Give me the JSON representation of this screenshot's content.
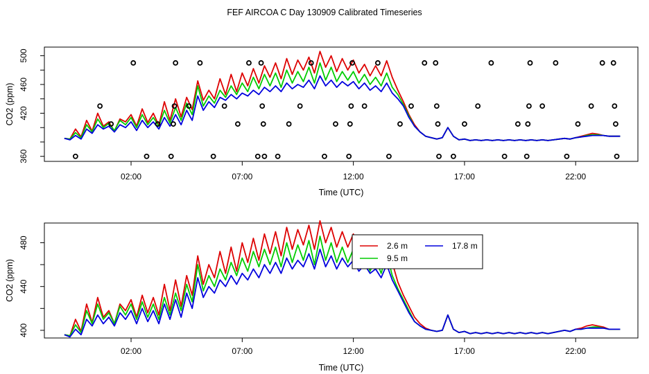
{
  "page_title": "FEF AIRCOA C  Day 130909  Calibrated Timeseries",
  "colors": {
    "red": "#dd0000",
    "green": "#00cc00",
    "blue": "#0000dd",
    "points": "#000000"
  },
  "chart_data": [
    {
      "type": "line",
      "name": "top",
      "title": "FEF AIRCOA C  Day 130909  Calibrated Timeseries",
      "xlabel": "Time (UTC)",
      "ylabel": "CO2 (ppm)",
      "xlim": [
        -1.9,
        24.8
      ],
      "ylim": [
        353,
        512
      ],
      "x_ticks": [
        2,
        7,
        12,
        17,
        22
      ],
      "x_tick_labels": [
        "02:00",
        "07:00",
        "12:00",
        "17:00",
        "22:00"
      ],
      "y_ticks": [
        360,
        420,
        460,
        500
      ],
      "y_tick_labels": [
        "360",
        "420",
        "460",
        "500"
      ],
      "extra_y_ticks": [
        380,
        400,
        440,
        480
      ],
      "x": [
        -1,
        -0.75,
        -0.5,
        -0.25,
        0,
        0.25,
        0.5,
        0.75,
        1,
        1.25,
        1.5,
        1.75,
        2,
        2.25,
        2.5,
        2.75,
        3,
        3.25,
        3.5,
        3.75,
        4,
        4.25,
        4.5,
        4.75,
        5,
        5.25,
        5.5,
        5.75,
        6,
        6.25,
        6.5,
        6.75,
        7,
        7.25,
        7.5,
        7.75,
        8,
        8.25,
        8.5,
        8.75,
        9,
        9.25,
        9.5,
        9.75,
        10,
        10.25,
        10.5,
        10.75,
        11,
        11.25,
        11.5,
        11.75,
        12,
        12.25,
        12.5,
        12.75,
        13,
        13.25,
        13.5,
        13.75,
        14,
        14.25,
        14.5,
        14.75,
        15,
        15.25,
        15.5,
        15.75,
        16,
        16.25,
        16.5,
        16.75,
        17,
        17.25,
        17.5,
        17.75,
        18,
        18.25,
        18.5,
        18.75,
        19,
        19.25,
        19.5,
        19.75,
        20,
        20.25,
        20.5,
        20.75,
        21,
        21.25,
        21.5,
        21.75,
        22,
        22.25,
        22.5,
        22.75,
        23,
        23.25,
        23.5,
        23.75,
        24
      ],
      "series": [
        {
          "name": "2.6 m",
          "color": "#dd0000",
          "values": [
            385,
            384,
            398,
            387,
            410,
            395,
            420,
            402,
            408,
            395,
            412,
            408,
            418,
            402,
            426,
            407,
            420,
            403,
            436,
            410,
            440,
            415,
            442,
            425,
            465,
            438,
            452,
            440,
            468,
            446,
            474,
            450,
            476,
            458,
            482,
            462,
            486,
            470,
            490,
            468,
            496,
            474,
            494,
            480,
            498,
            476,
            506,
            484,
            500,
            478,
            496,
            480,
            494,
            476,
            488,
            472,
            486,
            472,
            493,
            470,
            452,
            436,
            418,
            404,
            394,
            388,
            386,
            384,
            386,
            400,
            388,
            383,
            384,
            382,
            383,
            382,
            383,
            382,
            383,
            382,
            383,
            382,
            383,
            382,
            383,
            382,
            383,
            382,
            383,
            384,
            385,
            384,
            386,
            388,
            390,
            392,
            391,
            389,
            388,
            388,
            388
          ]
        },
        {
          "name": "9.5 m",
          "color": "#00cc00",
          "values": [
            385,
            384,
            393,
            386,
            404,
            394,
            412,
            400,
            406,
            396,
            410,
            404,
            414,
            400,
            418,
            404,
            414,
            402,
            424,
            406,
            428,
            410,
            434,
            418,
            458,
            430,
            444,
            434,
            452,
            442,
            458,
            446,
            462,
            450,
            470,
            454,
            474,
            458,
            476,
            456,
            480,
            462,
            478,
            464,
            484,
            462,
            490,
            466,
            484,
            464,
            478,
            466,
            478,
            462,
            474,
            460,
            470,
            458,
            476,
            456,
            446,
            432,
            416,
            402,
            394,
            388,
            386,
            384,
            386,
            400,
            388,
            383,
            384,
            382,
            383,
            382,
            383,
            382,
            383,
            382,
            383,
            382,
            383,
            382,
            383,
            382,
            383,
            382,
            383,
            384,
            385,
            384,
            386,
            387,
            389,
            390,
            390,
            389,
            388,
            388,
            388
          ]
        },
        {
          "name": "17.8 m",
          "color": "#0000dd",
          "values": [
            385,
            383,
            389,
            384,
            398,
            392,
            404,
            398,
            402,
            394,
            404,
            400,
            408,
            396,
            410,
            400,
            408,
            398,
            414,
            402,
            418,
            404,
            424,
            410,
            444,
            424,
            436,
            428,
            442,
            438,
            446,
            440,
            448,
            444,
            452,
            446,
            456,
            450,
            458,
            450,
            462,
            454,
            460,
            456,
            466,
            454,
            472,
            458,
            466,
            456,
            464,
            458,
            464,
            454,
            462,
            452,
            458,
            450,
            462,
            448,
            440,
            430,
            414,
            402,
            394,
            388,
            386,
            384,
            386,
            400,
            388,
            383,
            384,
            382,
            383,
            382,
            383,
            382,
            383,
            382,
            383,
            382,
            383,
            382,
            383,
            382,
            383,
            382,
            383,
            384,
            385,
            384,
            386,
            387,
            388,
            389,
            389,
            389,
            388,
            388,
            388
          ]
        }
      ],
      "points": [
        {
          "x": -0.5,
          "y": 360
        },
        {
          "x": 0.6,
          "y": 430
        },
        {
          "x": 1.1,
          "y": 405
        },
        {
          "x": 2.1,
          "y": 490
        },
        {
          "x": 2.7,
          "y": 360
        },
        {
          "x": 3.2,
          "y": 405
        },
        {
          "x": 3.8,
          "y": 360
        },
        {
          "x": 3.9,
          "y": 405
        },
        {
          "x": 3.95,
          "y": 430
        },
        {
          "x": 4.0,
          "y": 490
        },
        {
          "x": 4.6,
          "y": 430
        },
        {
          "x": 5.1,
          "y": 490
        },
        {
          "x": 5.7,
          "y": 360
        },
        {
          "x": 6.2,
          "y": 430
        },
        {
          "x": 6.8,
          "y": 405
        },
        {
          "x": 7.3,
          "y": 490
        },
        {
          "x": 7.7,
          "y": 360
        },
        {
          "x": 7.85,
          "y": 490
        },
        {
          "x": 7.9,
          "y": 430
        },
        {
          "x": 7.95,
          "y": 405
        },
        {
          "x": 8.0,
          "y": 360
        },
        {
          "x": 8.6,
          "y": 360
        },
        {
          "x": 9.1,
          "y": 405
        },
        {
          "x": 9.6,
          "y": 430
        },
        {
          "x": 10.1,
          "y": 490
        },
        {
          "x": 10.7,
          "y": 360
        },
        {
          "x": 11.2,
          "y": 405
        },
        {
          "x": 11.8,
          "y": 360
        },
        {
          "x": 11.85,
          "y": 405
        },
        {
          "x": 11.9,
          "y": 430
        },
        {
          "x": 11.95,
          "y": 490
        },
        {
          "x": 12.5,
          "y": 430
        },
        {
          "x": 13.1,
          "y": 490
        },
        {
          "x": 13.6,
          "y": 360
        },
        {
          "x": 14.1,
          "y": 405
        },
        {
          "x": 14.6,
          "y": 430
        },
        {
          "x": 15.2,
          "y": 490
        },
        {
          "x": 15.7,
          "y": 490
        },
        {
          "x": 15.75,
          "y": 430
        },
        {
          "x": 15.8,
          "y": 405
        },
        {
          "x": 15.85,
          "y": 360
        },
        {
          "x": 16.5,
          "y": 360
        },
        {
          "x": 17.0,
          "y": 405
        },
        {
          "x": 17.6,
          "y": 430
        },
        {
          "x": 18.2,
          "y": 490
        },
        {
          "x": 18.8,
          "y": 360
        },
        {
          "x": 19.4,
          "y": 405
        },
        {
          "x": 19.8,
          "y": 360
        },
        {
          "x": 19.85,
          "y": 405
        },
        {
          "x": 19.9,
          "y": 430
        },
        {
          "x": 19.95,
          "y": 490
        },
        {
          "x": 20.5,
          "y": 430
        },
        {
          "x": 21.1,
          "y": 490
        },
        {
          "x": 21.6,
          "y": 360
        },
        {
          "x": 22.1,
          "y": 405
        },
        {
          "x": 22.7,
          "y": 430
        },
        {
          "x": 23.2,
          "y": 490
        },
        {
          "x": 23.7,
          "y": 490
        },
        {
          "x": 23.75,
          "y": 430
        },
        {
          "x": 23.8,
          "y": 405
        },
        {
          "x": 23.85,
          "y": 360
        }
      ]
    },
    {
      "type": "line",
      "name": "bottom",
      "xlabel": "Time (UTC)",
      "ylabel": "CO2 (ppm)",
      "xlim": [
        -1.9,
        24.8
      ],
      "ylim": [
        393,
        498
      ],
      "x_ticks": [
        2,
        7,
        12,
        17,
        22
      ],
      "x_tick_labels": [
        "02:00",
        "07:00",
        "12:00",
        "17:00",
        "22:00"
      ],
      "y_ticks": [
        400,
        440,
        480
      ],
      "y_tick_labels": [
        "400",
        "440",
        "480"
      ],
      "extra_y_ticks": [
        420,
        460
      ],
      "legend_position": "top-right",
      "legend": [
        {
          "label": "2.6 m",
          "color": "#dd0000"
        },
        {
          "label": "9.5 m",
          "color": "#00cc00"
        },
        {
          "label": "17.8 m",
          "color": "#0000dd"
        }
      ],
      "x": [
        -1,
        -0.75,
        -0.5,
        -0.25,
        0,
        0.25,
        0.5,
        0.75,
        1,
        1.25,
        1.5,
        1.75,
        2,
        2.25,
        2.5,
        2.75,
        3,
        3.25,
        3.5,
        3.75,
        4,
        4.25,
        4.5,
        4.75,
        5,
        5.25,
        5.5,
        5.75,
        6,
        6.25,
        6.5,
        6.75,
        7,
        7.25,
        7.5,
        7.75,
        8,
        8.25,
        8.5,
        8.75,
        9,
        9.25,
        9.5,
        9.75,
        10,
        10.25,
        10.5,
        10.75,
        11,
        11.25,
        11.5,
        11.75,
        12,
        12.25,
        12.5,
        12.75,
        13,
        13.25,
        13.5,
        13.75,
        14,
        14.25,
        14.5,
        14.75,
        15,
        15.25,
        15.5,
        15.75,
        16,
        16.25,
        16.5,
        16.75,
        17,
        17.25,
        17.5,
        17.75,
        18,
        18.25,
        18.5,
        18.75,
        19,
        19.25,
        19.5,
        19.75,
        20,
        20.25,
        20.5,
        20.75,
        21,
        21.25,
        21.5,
        21.75,
        22,
        22.25,
        22.5,
        22.75,
        23,
        23.25,
        23.5,
        23.75,
        24
      ],
      "series": [
        {
          "name": "2.6 m",
          "color": "#dd0000",
          "values": [
            396,
            395,
            410,
            399,
            424,
            407,
            430,
            412,
            418,
            406,
            424,
            418,
            428,
            412,
            432,
            416,
            430,
            414,
            442,
            418,
            446,
            422,
            450,
            432,
            468,
            442,
            460,
            448,
            472,
            452,
            476,
            454,
            480,
            462,
            484,
            464,
            488,
            470,
            490,
            468,
            494,
            474,
            492,
            478,
            496,
            474,
            500,
            480,
            494,
            476,
            490,
            476,
            488,
            472,
            484,
            468,
            480,
            464,
            486,
            462,
            444,
            432,
            422,
            412,
            406,
            402,
            400,
            399,
            400,
            414,
            401,
            398,
            399,
            397,
            398,
            397,
            398,
            397,
            398,
            397,
            398,
            397,
            398,
            397,
            398,
            397,
            398,
            397,
            398,
            399,
            400,
            399,
            401,
            402,
            404,
            405,
            404,
            403,
            401,
            401,
            401
          ]
        },
        {
          "name": "9.5 m",
          "color": "#00cc00",
          "values": [
            396,
            395,
            405,
            398,
            418,
            406,
            424,
            410,
            416,
            406,
            422,
            414,
            424,
            410,
            426,
            412,
            424,
            410,
            430,
            414,
            434,
            418,
            442,
            426,
            460,
            436,
            450,
            440,
            456,
            446,
            462,
            450,
            466,
            454,
            472,
            458,
            474,
            460,
            476,
            458,
            480,
            462,
            478,
            464,
            482,
            460,
            486,
            464,
            480,
            462,
            476,
            462,
            474,
            458,
            470,
            454,
            466,
            452,
            470,
            450,
            438,
            428,
            418,
            408,
            404,
            401,
            400,
            399,
            400,
            414,
            401,
            398,
            399,
            397,
            398,
            397,
            398,
            397,
            398,
            397,
            398,
            397,
            398,
            397,
            398,
            397,
            398,
            397,
            398,
            399,
            400,
            399,
            401,
            401,
            402,
            403,
            403,
            402,
            401,
            401,
            401
          ]
        },
        {
          "name": "17.8 m",
          "color": "#0000dd",
          "values": [
            396,
            394,
            401,
            396,
            410,
            404,
            414,
            406,
            412,
            404,
            416,
            410,
            418,
            406,
            420,
            408,
            418,
            406,
            424,
            410,
            428,
            412,
            434,
            420,
            448,
            430,
            440,
            434,
            446,
            440,
            450,
            442,
            452,
            446,
            456,
            448,
            460,
            452,
            462,
            452,
            466,
            456,
            464,
            458,
            470,
            456,
            474,
            458,
            468,
            456,
            466,
            458,
            464,
            454,
            460,
            452,
            456,
            448,
            460,
            446,
            436,
            426,
            416,
            408,
            404,
            401,
            400,
            399,
            400,
            414,
            401,
            398,
            399,
            397,
            398,
            397,
            398,
            397,
            398,
            397,
            398,
            397,
            398,
            397,
            398,
            397,
            398,
            397,
            398,
            399,
            400,
            399,
            401,
            401,
            402,
            402,
            402,
            402,
            401,
            401,
            401
          ]
        }
      ]
    }
  ]
}
